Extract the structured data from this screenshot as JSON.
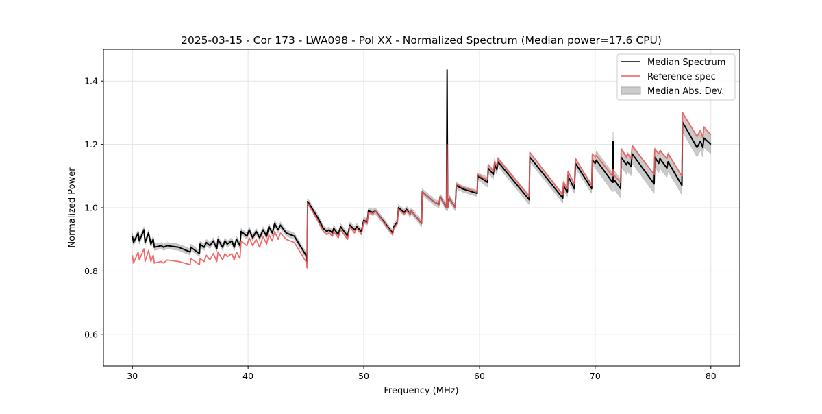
{
  "chart_data": {
    "type": "line",
    "title": "2025-03-15 - Cor 173 - LWA098 - Pol XX - Normalized Spectrum (Median power=17.6 CPU)",
    "xlabel": "Frequency (MHz)",
    "ylabel": "Normalized Power",
    "xlim": [
      27.5,
      82.5
    ],
    "ylim": [
      0.5,
      1.5
    ],
    "xticks": [
      30,
      40,
      50,
      60,
      70,
      80
    ],
    "yticks": [
      0.6,
      0.8,
      1.0,
      1.2,
      1.4
    ],
    "xtick_labels": [
      "30",
      "40",
      "50",
      "60",
      "70",
      "80"
    ],
    "ytick_labels": [
      "0.6",
      "0.8",
      "1.0",
      "1.2",
      "1.4"
    ],
    "grid": true,
    "legend_position": "top-right",
    "legend": [
      "Median Spectrum",
      "Reference spec",
      "Median Abs. Dev."
    ],
    "colors": {
      "median": "#000000",
      "reference": "#f05a5a",
      "mad": "#b0b0b0",
      "overlap": "#8b0000"
    },
    "mad_bands": [
      {
        "from": 30,
        "to": 60,
        "value": 0.01
      },
      {
        "from": 60,
        "to": 70,
        "value": 0.015
      },
      {
        "from": 70,
        "to": 80,
        "value": 0.03
      }
    ],
    "x": [
      30.0,
      30.1,
      30.5,
      30.6,
      31.0,
      31.1,
      31.4,
      31.6,
      31.8,
      31.9,
      32.5,
      32.7,
      33.0,
      34.0,
      35.0,
      35.05,
      35.8,
      35.85,
      36.2,
      36.4,
      36.7,
      37.0,
      37.3,
      37.4,
      37.8,
      38.0,
      38.2,
      38.6,
      38.8,
      39.0,
      39.3,
      39.4,
      39.9,
      40.1,
      40.4,
      40.7,
      41.0,
      41.3,
      41.6,
      41.8,
      42.1,
      42.3,
      42.6,
      42.8,
      43.3,
      44.0,
      45.0,
      45.1,
      45.15,
      46.0,
      46.5,
      46.8,
      47.0,
      47.3,
      47.4,
      47.8,
      48.0,
      48.6,
      48.8,
      49.2,
      49.4,
      49.8,
      50.0,
      50.3,
      50.4,
      50.8,
      51.0,
      52.5,
      52.6,
      52.9,
      53.0,
      53.5,
      53.7,
      54.0,
      54.1,
      55.0,
      55.05,
      56.0,
      56.5,
      56.6,
      57.15,
      57.2,
      57.25,
      57.4,
      57.9,
      58.0,
      58.5,
      59.8,
      59.85,
      60.5,
      60.7,
      60.75,
      61.2,
      61.3,
      61.5,
      61.6,
      64.3,
      64.35,
      67.2,
      67.25,
      67.6,
      67.65,
      68.2,
      68.3,
      69.7,
      69.75,
      70.0,
      70.1,
      71.5,
      71.55,
      71.6,
      71.7,
      72.2,
      72.25,
      72.7,
      72.8,
      73.1,
      73.2,
      75.1,
      75.15,
      75.5,
      75.6,
      76.2,
      76.3,
      77.5,
      77.55,
      78.8,
      79.1,
      79.3,
      79.4,
      80.0
    ],
    "series": [
      {
        "name": "Median Spectrum",
        "values": [
          0.91,
          0.89,
          0.92,
          0.895,
          0.93,
          0.89,
          0.92,
          0.885,
          0.9,
          0.875,
          0.88,
          0.875,
          0.88,
          0.875,
          0.86,
          0.875,
          0.855,
          0.885,
          0.875,
          0.89,
          0.88,
          0.895,
          0.87,
          0.9,
          0.875,
          0.895,
          0.885,
          0.895,
          0.875,
          0.9,
          0.88,
          0.925,
          0.91,
          0.93,
          0.905,
          0.925,
          0.905,
          0.93,
          0.91,
          0.94,
          0.92,
          0.95,
          0.93,
          0.945,
          0.92,
          0.91,
          0.85,
          0.83,
          1.02,
          0.97,
          0.935,
          0.925,
          0.93,
          0.92,
          0.935,
          0.915,
          0.94,
          0.91,
          0.945,
          0.93,
          0.94,
          0.925,
          0.96,
          0.955,
          0.99,
          0.985,
          0.99,
          0.92,
          0.94,
          0.955,
          1.0,
          0.985,
          0.995,
          0.98,
          0.99,
          0.95,
          1.05,
          1.02,
          1.01,
          1.035,
          1.0,
          1.435,
          1.0,
          1.03,
          1.0,
          1.07,
          1.06,
          1.045,
          1.1,
          1.085,
          1.08,
          1.125,
          1.105,
          1.14,
          1.12,
          1.145,
          1.025,
          1.16,
          1.03,
          1.07,
          1.05,
          1.1,
          1.06,
          1.14,
          1.06,
          1.15,
          1.14,
          1.15,
          1.08,
          1.21,
          1.08,
          1.085,
          1.06,
          1.16,
          1.135,
          1.145,
          1.13,
          1.17,
          1.075,
          1.16,
          1.14,
          1.155,
          1.125,
          1.145,
          1.07,
          1.27,
          1.19,
          1.21,
          1.19,
          1.22,
          1.2
        ]
      },
      {
        "name": "Reference spec",
        "values": [
          0.85,
          0.825,
          0.86,
          0.835,
          0.87,
          0.83,
          0.865,
          0.83,
          0.85,
          0.825,
          0.83,
          0.825,
          0.835,
          0.83,
          0.82,
          0.84,
          0.82,
          0.84,
          0.83,
          0.85,
          0.835,
          0.855,
          0.83,
          0.86,
          0.835,
          0.855,
          0.845,
          0.855,
          0.835,
          0.86,
          0.84,
          0.895,
          0.88,
          0.905,
          0.88,
          0.9,
          0.875,
          0.91,
          0.885,
          0.915,
          0.895,
          0.925,
          0.9,
          0.92,
          0.9,
          0.89,
          0.83,
          0.81,
          1.015,
          0.96,
          0.925,
          0.915,
          0.92,
          0.91,
          0.925,
          0.905,
          0.93,
          0.9,
          0.94,
          0.92,
          0.935,
          0.915,
          0.955,
          0.95,
          0.985,
          0.98,
          0.99,
          0.915,
          0.935,
          0.95,
          0.995,
          0.98,
          0.99,
          0.98,
          0.99,
          0.95,
          1.05,
          1.02,
          1.01,
          1.035,
          1.0,
          1.2,
          1.0,
          1.03,
          1.0,
          1.075,
          1.065,
          1.05,
          1.105,
          1.09,
          1.09,
          1.135,
          1.115,
          1.145,
          1.13,
          1.155,
          1.035,
          1.175,
          1.04,
          1.08,
          1.06,
          1.115,
          1.075,
          1.155,
          1.07,
          1.17,
          1.16,
          1.165,
          1.1,
          1.12,
          1.1,
          1.1,
          1.08,
          1.185,
          1.16,
          1.17,
          1.155,
          1.195,
          1.105,
          1.185,
          1.17,
          1.18,
          1.155,
          1.17,
          1.1,
          1.3,
          1.225,
          1.245,
          1.22,
          1.255,
          1.23
        ]
      }
    ]
  }
}
